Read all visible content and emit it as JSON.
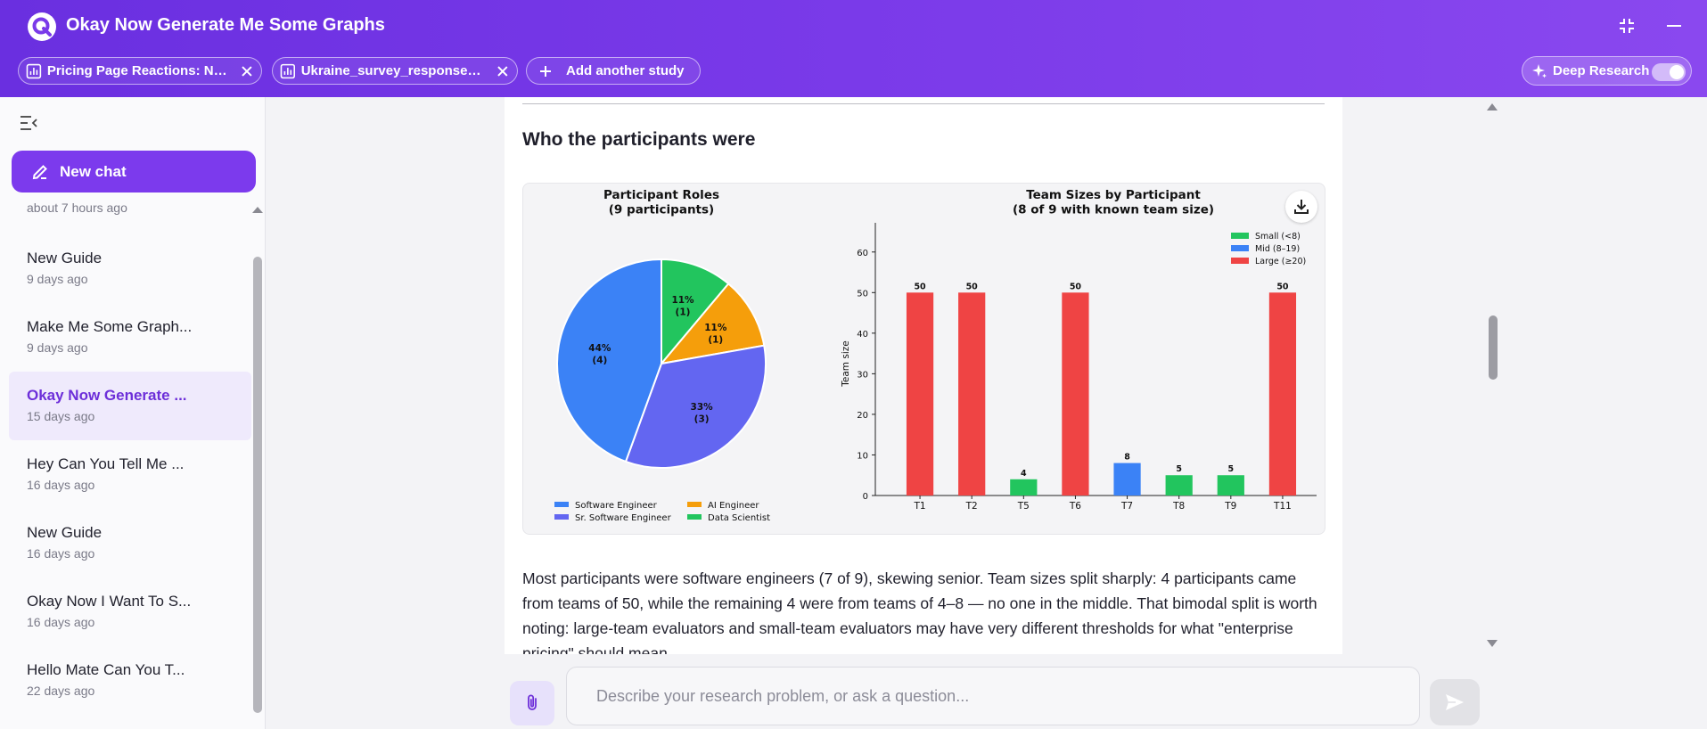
{
  "app": {
    "title": "Okay Now Generate Me Some Graphs"
  },
  "window_controls": {
    "collapse_icon": "collapse-arrows-icon",
    "minimize_icon": "minimize-icon"
  },
  "study_tabs": [
    {
      "label": "Pricing Page Reactions: Ne...",
      "icon": "bar-chart-icon"
    },
    {
      "label": "Ukraine_survey_responses_...",
      "icon": "bar-chart-icon"
    }
  ],
  "add_study_label": "Add another study",
  "deep_research": {
    "label": "Deep Research",
    "enabled": true
  },
  "sidebar": {
    "new_chat_label": "New chat",
    "partial_top_time": "about 7 hours ago",
    "chats": [
      {
        "title": "New Guide",
        "time": "9 days ago",
        "active": false
      },
      {
        "title": "Make Me Some Graph...",
        "time": "9 days ago",
        "active": false
      },
      {
        "title": "Okay Now Generate ...",
        "time": "15 days ago",
        "active": true
      },
      {
        "title": "Hey Can You Tell Me ...",
        "time": "16 days ago",
        "active": false
      },
      {
        "title": "New Guide",
        "time": "16 days ago",
        "active": false
      },
      {
        "title": "Okay Now I Want To S...",
        "time": "16 days ago",
        "active": false
      },
      {
        "title": "Hello Mate Can You T...",
        "time": "22 days ago",
        "active": false
      }
    ]
  },
  "main": {
    "section_title": "Who the participants were",
    "paragraph": "Most participants were software engineers (7 of 9), skewing senior. Team sizes split sharply: 4 participants came from teams of 50, while the remaining 4 were from teams of 4–8 — no one in the middle. That bimodal split is worth noting: large-team evaluators and small-team evaluators may have very different thresholds for what \"enterprise pricing\" should mean."
  },
  "composer": {
    "placeholder": "Describe your research problem, or ask a question..."
  },
  "chart_data": [
    {
      "type": "pie",
      "title": "Participant Roles\n(9 participants)",
      "slices": [
        {
          "name": "Data Scientist",
          "value": 1,
          "label": "11%\n(1)",
          "color": "#22c55e"
        },
        {
          "name": "AI Engineer",
          "value": 1,
          "label": "11%\n(1)",
          "color": "#f59e0b"
        },
        {
          "name": "Sr. Software Engineer",
          "value": 3,
          "label": "33%\n(3)",
          "color": "#6366f1"
        },
        {
          "name": "Software Engineer",
          "value": 4,
          "label": "44%\n(4)",
          "color": "#3b82f6"
        }
      ],
      "legend": [
        "Software Engineer",
        "AI Engineer",
        "Sr. Software Engineer",
        "Data Scientist"
      ],
      "legend_position": "bottom"
    },
    {
      "type": "bar",
      "title": "Team Sizes by Participant\n(8 of 9 with known team size)",
      "categories": [
        "T1",
        "T2",
        "T5",
        "T6",
        "T7",
        "T8",
        "T9",
        "T11"
      ],
      "values": [
        50,
        50,
        4,
        50,
        8,
        5,
        5,
        50
      ],
      "groups": [
        "Large",
        "Large",
        "Small",
        "Large",
        "Mid",
        "Small",
        "Small",
        "Large"
      ],
      "group_legend": [
        {
          "key": "Small",
          "label": "Small (<8)",
          "color": "#22c55e"
        },
        {
          "key": "Mid",
          "label": "Mid (8–19)",
          "color": "#3b82f6"
        },
        {
          "key": "Large",
          "label": "Large (≥20)",
          "color": "#ef4444"
        }
      ],
      "ylabel": "Team size",
      "xlabel": "",
      "ylim": [
        0,
        65
      ],
      "yticks": [
        0,
        10,
        20,
        30,
        40,
        50,
        60
      ],
      "grid": false,
      "legend_position": "top-right"
    }
  ]
}
